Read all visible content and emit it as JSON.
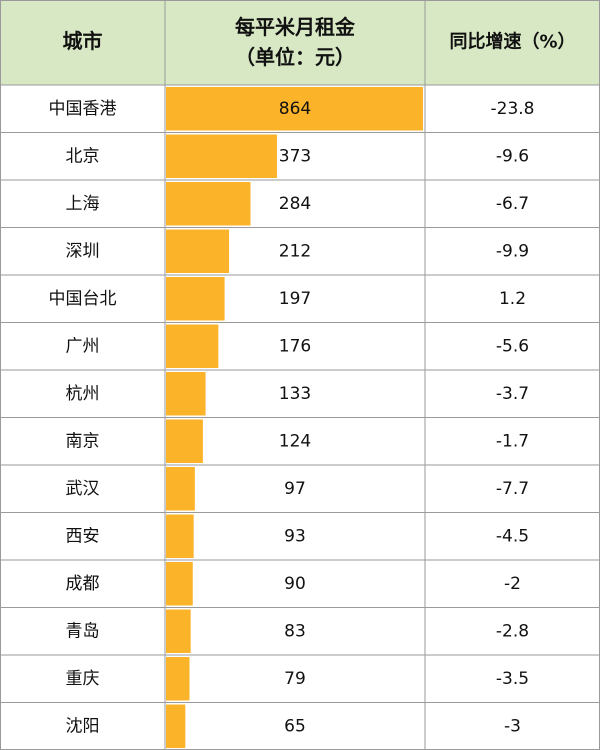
{
  "table": {
    "header": {
      "city": "城市",
      "rent": [
        "每平米月租金",
        "（单位：元）"
      ],
      "growth": "同比增速（%）"
    },
    "rows": [
      [
        "中国香港",
        864,
        -23.8
      ],
      [
        "北京",
        373,
        -9.6
      ],
      [
        "上海",
        284,
        -6.7
      ],
      [
        "深圳",
        212,
        -9.9
      ],
      [
        "中国台北",
        197,
        1.2
      ],
      [
        "广州",
        176,
        -5.6
      ],
      [
        "杭州",
        133,
        -3.7
      ],
      [
        "南京",
        124,
        -1.7
      ],
      [
        "武汉",
        97,
        -7.7
      ],
      [
        "西安",
        93,
        -4.5
      ],
      [
        "成都",
        90,
        -2
      ],
      [
        "青岛",
        83,
        -2.8
      ],
      [
        "重庆",
        79,
        -3.5
      ],
      [
        "沈阳",
        65,
        -3
      ]
    ],
    "bar_color": "#fbb32a",
    "header_color": "#d8e8c4"
  }
}
